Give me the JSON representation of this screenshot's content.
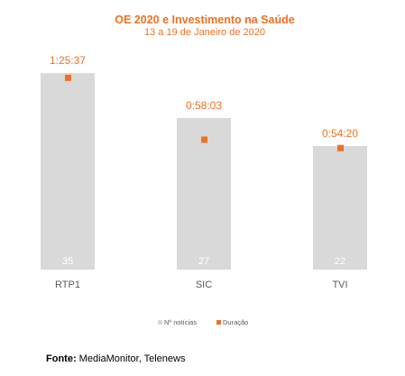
{
  "colors": {
    "accent": "#f07022",
    "bar": "#d9d9d9",
    "bar_label": "#ffffff",
    "axis_text": "#595959"
  },
  "chart_data": {
    "type": "bar",
    "title": "OE 2020 e Investimento na Saúde",
    "subtitle": "13 a 19 de Janeiro de 2020",
    "categories": [
      "RTP1",
      "SIC",
      "TVI"
    ],
    "series": [
      {
        "name": "Nº notícias",
        "type": "bar",
        "values": [
          35,
          27,
          22
        ]
      },
      {
        "name": "Duração",
        "type": "marker",
        "values": [
          "1:25:37",
          "0:58:03",
          "0:54:20"
        ],
        "seconds": [
          5137,
          3483,
          3260
        ]
      }
    ],
    "ylim": [
      0,
      40
    ],
    "grid": false,
    "legend": "bottom"
  },
  "source": {
    "label": "Fonte:",
    "text": "MediaMonitor, Telenews"
  }
}
